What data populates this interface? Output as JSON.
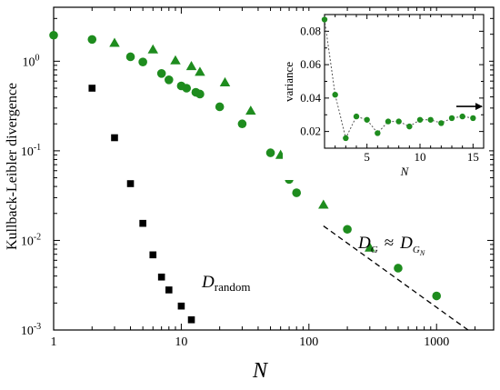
{
  "chart_data": [
    {
      "type": "scatter",
      "xlabel": "N",
      "ylabel": "Kullback-Leibler divergence",
      "xscale": "log",
      "yscale": "log",
      "xlim": [
        1,
        2800
      ],
      "ylim": [
        0.001,
        4
      ],
      "x_ticks": [
        1,
        10,
        100,
        1000
      ],
      "x_tick_labels": [
        "1",
        "10",
        "100",
        "1000"
      ],
      "y_ticks": [
        0.001,
        0.01,
        0.1,
        1
      ],
      "y_tick_labels": [
        "10",
        "10",
        "10",
        "10"
      ],
      "y_tick_exponents": [
        "-3",
        "-2",
        "-1",
        "0"
      ],
      "grid": false,
      "series": [
        {
          "marker": "square",
          "color": "#000000",
          "x": [
            2,
            3,
            4,
            5,
            6,
            7,
            8,
            10,
            12
          ],
          "y": [
            0.5,
            0.14,
            0.043,
            0.0155,
            0.0069,
            0.0039,
            0.0028,
            0.00185,
            0.0013
          ]
        },
        {
          "marker": "circle",
          "color": "#1e8c1e",
          "x": [
            1,
            2,
            4,
            5,
            7,
            8,
            10,
            11,
            13,
            14,
            20,
            30,
            50,
            70,
            80,
            200,
            500,
            1000
          ],
          "y": [
            1.95,
            1.75,
            1.12,
            0.98,
            0.73,
            0.62,
            0.53,
            0.5,
            0.45,
            0.43,
            0.31,
            0.2,
            0.095,
            0.048,
            0.034,
            0.0133,
            0.0049,
            0.0024
          ]
        },
        {
          "marker": "triangle",
          "color": "#1e8c1e",
          "x": [
            3,
            6,
            9,
            12,
            14,
            22,
            35,
            60,
            130,
            300
          ],
          "y": [
            1.6,
            1.35,
            1.02,
            0.88,
            0.76,
            0.58,
            0.28,
            0.09,
            0.025,
            0.0083
          ]
        }
      ],
      "reference_line": {
        "style": "dashed",
        "color": "#000000",
        "x": [
          130,
          1800
        ],
        "y": [
          0.0145,
          0.00098
        ]
      },
      "annotations": {
        "random": {
          "text": "D",
          "subscript": "random"
        },
        "approx": {
          "left": "D",
          "left_sub": "G",
          "symbol": "≈",
          "right": "D",
          "right_sub": "G",
          "right_subsub": "N"
        }
      }
    },
    {
      "type": "line",
      "xlabel": "N",
      "ylabel": "variance",
      "xlim": [
        1,
        16
      ],
      "ylim": [
        0.01,
        0.09
      ],
      "x_ticks": [
        5,
        10,
        15
      ],
      "x_tick_labels": [
        "5",
        "10",
        "15"
      ],
      "y_ticks": [
        0.02,
        0.04,
        0.06,
        0.08
      ],
      "y_tick_labels": [
        "0.02",
        "0.04",
        "0.06",
        "0.08"
      ],
      "grid": false,
      "series": [
        {
          "marker": "circle",
          "line": "dotted",
          "color": "#1e8c1e",
          "x": [
            1,
            2,
            3,
            4,
            5,
            6,
            7,
            8,
            9,
            10,
            11,
            12,
            13,
            14,
            15
          ],
          "y": [
            0.087,
            0.042,
            0.016,
            0.029,
            0.027,
            0.019,
            0.026,
            0.026,
            0.023,
            0.027,
            0.027,
            0.025,
            0.028,
            0.029,
            0.028
          ]
        }
      ],
      "arrow": {
        "y": 0.035,
        "direction": "right"
      }
    }
  ]
}
